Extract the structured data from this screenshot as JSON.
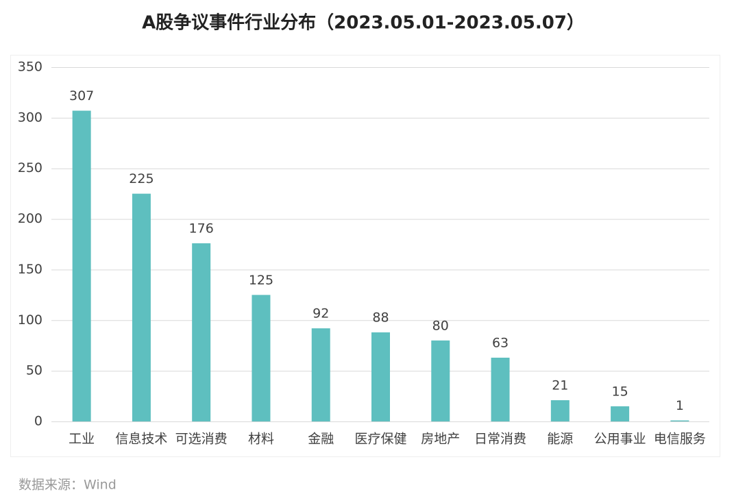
{
  "chart_data": {
    "type": "bar",
    "title": "A股争议事件行业分布（2023.05.01-2023.05.07）",
    "categories": [
      "工业",
      "信息技术",
      "可选消费",
      "材料",
      "金融",
      "医疗保健",
      "房地产",
      "日常消费",
      "能源",
      "公用事业",
      "电信服务"
    ],
    "values": [
      307,
      225,
      176,
      125,
      92,
      88,
      80,
      63,
      21,
      15,
      1
    ],
    "color": "#5ebfbf",
    "ylim": [
      0,
      350
    ],
    "yticks": [
      0,
      50,
      100,
      150,
      200,
      250,
      300,
      350
    ],
    "grid": true,
    "source": "数据来源：Wind"
  }
}
